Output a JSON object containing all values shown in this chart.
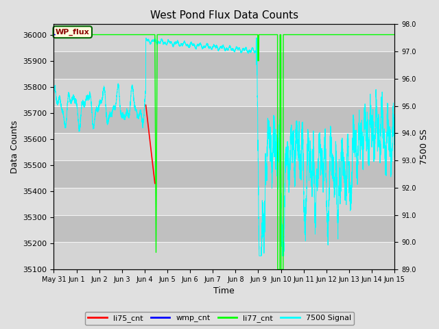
{
  "title": "West Pond Flux Data Counts",
  "xlabel": "Time",
  "ylabel_left": "Data Counts",
  "ylabel_right": "7500 SS",
  "ylim_left": [
    35100,
    36040
  ],
  "ylim_right": [
    89.0,
    98.0
  ],
  "fig_bg": "#e0e0e0",
  "plot_bg": "#cccccc",
  "band_colors": [
    "#c8c8c8",
    "#d8d8d8"
  ],
  "annotation_text": "WP_flux",
  "legend_labels": [
    "li75_cnt",
    "wmp_cnt",
    "li77_cnt",
    "7500 Signal"
  ],
  "legend_colors": [
    "red",
    "blue",
    "lime",
    "cyan"
  ],
  "tick_labels": [
    "May 31",
    "Jun 1",
    "Jun 2",
    "Jun 3",
    "Jun 4",
    "Jun 5",
    "Jun 6",
    "Jun 7",
    "Jun 8",
    "Jun 9",
    "Jun 10",
    "Jun 11",
    "Jun 12",
    "Jun 13",
    "Jun 14",
    "Jun 15"
  ]
}
